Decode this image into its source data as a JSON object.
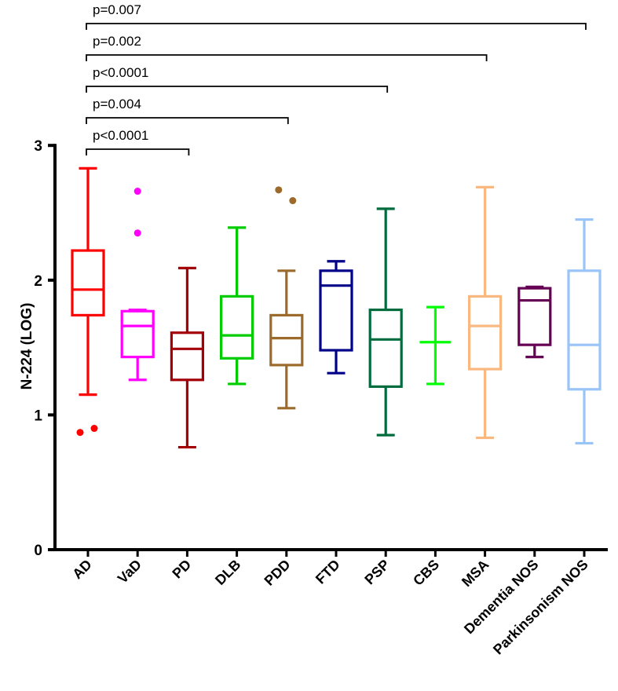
{
  "chart_data": {
    "type": "box",
    "title": "",
    "xlabel": "",
    "ylabel": "N-224 (LOG)",
    "ylim": [
      0,
      3
    ],
    "yticks": [
      "0",
      "1",
      "2",
      "3"
    ],
    "grid": false,
    "categories": [
      "AD",
      "VaD",
      "PD",
      "DLB",
      "PDD",
      "FTD",
      "PSP",
      "CBS",
      "MSA",
      "Dementia NOS",
      "Parkinsonism NOS"
    ],
    "series": [
      {
        "name": "AD",
        "color": "#ff0000",
        "min": 1.15,
        "q1": 1.74,
        "median": 1.93,
        "q3": 2.22,
        "max": 2.83,
        "outliers": [
          0.87,
          0.9
        ]
      },
      {
        "name": "VaD",
        "color": "#ff00ff",
        "min": 1.26,
        "q1": 1.43,
        "median": 1.66,
        "q3": 1.77,
        "max": 1.78,
        "outliers": [
          2.66,
          2.35
        ]
      },
      {
        "name": "PD",
        "color": "#a30008",
        "min": 0.76,
        "q1": 1.26,
        "median": 1.49,
        "q3": 1.61,
        "max": 2.09,
        "outliers": []
      },
      {
        "name": "DLB",
        "color": "#00cc00",
        "min": 1.23,
        "q1": 1.42,
        "median": 1.59,
        "q3": 1.88,
        "max": 2.39,
        "outliers": []
      },
      {
        "name": "PDD",
        "color": "#9c6a2a",
        "min": 1.05,
        "q1": 1.37,
        "median": 1.57,
        "q3": 1.74,
        "max": 2.07,
        "outliers": [
          2.67,
          2.59
        ]
      },
      {
        "name": "FTD",
        "color": "#000088",
        "min": 1.31,
        "q1": 1.48,
        "median": 1.96,
        "q3": 2.07,
        "max": 2.14,
        "outliers": []
      },
      {
        "name": "PSP",
        "color": "#006b3c",
        "min": 0.85,
        "q1": 1.21,
        "median": 1.56,
        "q3": 1.78,
        "max": 2.53,
        "outliers": []
      },
      {
        "name": "CBS",
        "color": "#00ff00",
        "min": 1.23,
        "q1": null,
        "median": 1.54,
        "q3": null,
        "max": 1.8,
        "outliers": []
      },
      {
        "name": "MSA",
        "color": "#f8b880",
        "min": 0.83,
        "q1": 1.34,
        "median": 1.66,
        "q3": 1.88,
        "max": 2.69,
        "outliers": []
      },
      {
        "name": "Dementia NOS",
        "color": "#660055",
        "min": 1.43,
        "q1": 1.52,
        "median": 1.85,
        "q3": 1.94,
        "max": 1.95,
        "outliers": []
      },
      {
        "name": "Parkinsonism NOS",
        "color": "#99c4f8",
        "min": 0.79,
        "q1": 1.19,
        "median": 1.52,
        "q3": 2.07,
        "max": 2.45,
        "outliers": []
      }
    ],
    "annotations": [
      {
        "from": "AD",
        "to": "PD",
        "label": "p<0.0001"
      },
      {
        "from": "AD",
        "to": "PDD",
        "label": "p=0.004"
      },
      {
        "from": "AD",
        "to": "PSP",
        "label": "p<0.0001"
      },
      {
        "from": "AD",
        "to": "MSA",
        "label": "p=0.002"
      },
      {
        "from": "AD",
        "to": "Parkinsonism NOS",
        "label": "p=0.007"
      }
    ]
  }
}
